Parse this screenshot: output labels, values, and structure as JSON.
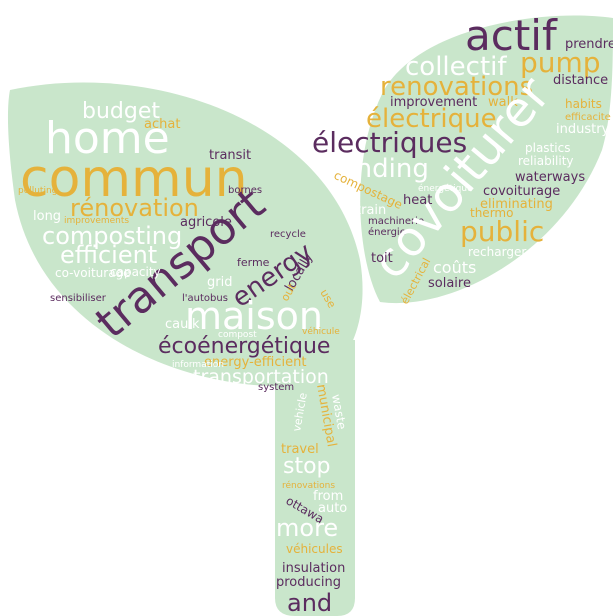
{
  "words": [
    "actif",
    "prendre",
    "collectif",
    "pump",
    "renovations",
    "distance",
    "improvement",
    "walk",
    "habits",
    "électrique",
    "efficacite",
    "industry",
    "électriques",
    "plastics",
    "reliability",
    "funding",
    "waterways",
    "compostage",
    "énergétique",
    "covoiturage",
    "heat",
    "eliminating",
    "train",
    "thermo",
    "machinerie",
    "énergie",
    "public",
    "covoiturer",
    "recharger",
    "toit",
    "coûts",
    "électrical",
    "solaire",
    "budget",
    "achat",
    "home",
    "commun",
    "transit",
    "rénovation",
    "bornes",
    "polluting",
    "long",
    "improvements",
    "agricole",
    "composting",
    "transport",
    "recycle",
    "efficient",
    "ferme",
    "co-voiturage",
    "capacity",
    "grid",
    "energy",
    "locally",
    "out",
    "use",
    "sensibiliser",
    "l'autobus",
    "caulk",
    "maison",
    "compost",
    "véhicule",
    "écoénergétique",
    "energy-efficient",
    "information",
    "transportation",
    "system",
    "vehicle",
    "municipal",
    "waste",
    "travel",
    "stop",
    "rénovations",
    "from",
    "auto",
    "ottawa",
    "more",
    "véhicules",
    "insulation",
    "producing",
    "and"
  ]
}
